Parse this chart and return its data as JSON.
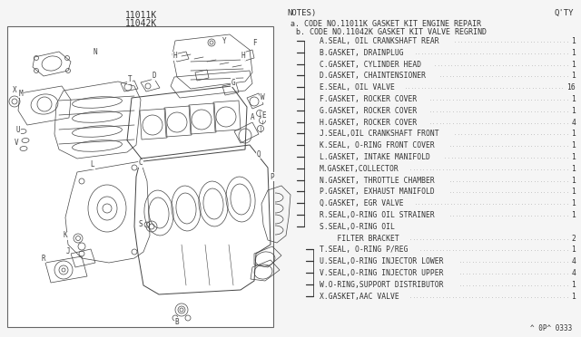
{
  "title_left": "11011K",
  "title_left2": "11042K",
  "notes_header": "NOTES)",
  "qty_header": "Q'TY",
  "note_a": "a. CODE NO.11011K GASKET KIT ENGINE REPAIR",
  "note_b": "  b. CODE NO.11042K GASKET KIT VALVE REGRIND",
  "parts": [
    {
      "code": "A",
      "desc": "SEAL, OIL CRANKSHAFT REAR",
      "qty": "1",
      "a": true,
      "b": false
    },
    {
      "code": "B",
      "desc": "GASKET, DRAINPLUG",
      "qty": "1",
      "a": true,
      "b": false
    },
    {
      "code": "C",
      "desc": "GASKET, CYLINDER HEAD",
      "qty": "1",
      "a": true,
      "b": false
    },
    {
      "code": "D",
      "desc": "GASKET, CHAINTENSIONER",
      "qty": "1",
      "a": true,
      "b": false
    },
    {
      "code": "E",
      "desc": "SEAL, OIL VALVE",
      "qty": "16",
      "a": true,
      "b": false
    },
    {
      "code": "F",
      "desc": "GASKET, ROCKER COVER",
      "qty": "1",
      "a": true,
      "b": false
    },
    {
      "code": "G",
      "desc": "GASKET, ROCKER COVER",
      "qty": "1",
      "a": true,
      "b": false
    },
    {
      "code": "H",
      "desc": "GASKET, ROCKER COVER",
      "qty": "4",
      "a": true,
      "b": false
    },
    {
      "code": "J",
      "desc": "SEAL,OIL CRANKSHAFT FRONT",
      "qty": "1",
      "a": true,
      "b": false
    },
    {
      "code": "K",
      "desc": "SEAL, O-RING FRONT COVER",
      "qty": "1",
      "a": true,
      "b": false
    },
    {
      "code": "L",
      "desc": "GASKET, INTAKE MANIFOLD",
      "qty": "1",
      "a": true,
      "b": false
    },
    {
      "code": "M",
      "desc": "GASKET,COLLECTOR",
      "qty": "1",
      "a": true,
      "b": false
    },
    {
      "code": "N",
      "desc": "GASKET, THROTTLE CHAMBER",
      "qty": "1",
      "a": true,
      "b": false
    },
    {
      "code": "P",
      "desc": "GASKET, EXHAUST MANIFOLD",
      "qty": "1",
      "a": true,
      "b": false
    },
    {
      "code": "Q",
      "desc": "GASKET, EGR VALVE",
      "qty": "1",
      "a": true,
      "b": false
    },
    {
      "code": "R",
      "desc": "SEAL,O-RING OIL STRAINER",
      "qty": "1",
      "a": true,
      "b": false
    },
    {
      "code": "S",
      "desc": "SEAL,O-RING OIL",
      "qty": "",
      "a": true,
      "b": false
    },
    {
      "code": "",
      "desc": "    FILTER BRACKET",
      "qty": "2",
      "a": false,
      "b": false
    },
    {
      "code": "T",
      "desc": "SEAL, O-RING P/REG",
      "qty": "1",
      "a": false,
      "b": true
    },
    {
      "code": "U",
      "desc": "SEAL,O-RING INJECTOR LOWER",
      "qty": "4",
      "a": false,
      "b": true
    },
    {
      "code": "V",
      "desc": "SEAL,O-RING INJECTOR UPPER",
      "qty": "4",
      "a": false,
      "b": true
    },
    {
      "code": "W",
      "desc": "O-RING,SUPPORT DISTRIBUTOR",
      "qty": "1",
      "a": false,
      "b": true
    },
    {
      "code": "X",
      "desc": "GASKET,AAC VALVE",
      "qty": "1",
      "a": false,
      "b": true
    }
  ],
  "footer": "^ 0P^ 0333",
  "bg_color": "#f0f0f0",
  "text_color": "#333333",
  "diagram_border_color": "#555555"
}
